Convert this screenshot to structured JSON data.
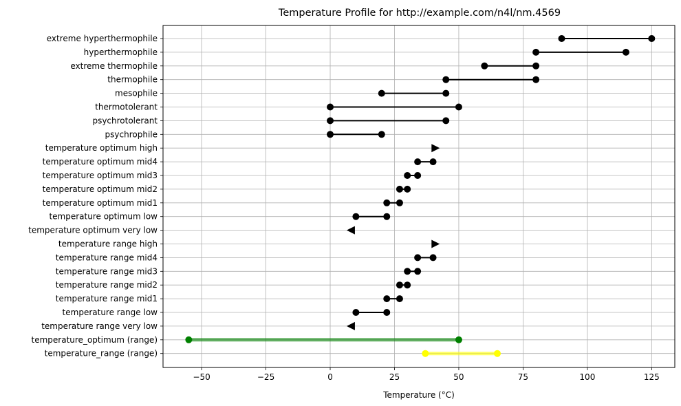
{
  "chart_data": {
    "type": "range",
    "title": "Temperature Profile for http://example.com/n4l/nm.4569",
    "xlabel": "Temperature (°C)",
    "ylabel": "",
    "xlim": [
      -65,
      134
    ],
    "xticks": [
      -50,
      -25,
      0,
      25,
      50,
      75,
      100,
      125
    ],
    "xtick_labels": [
      "−50",
      "−25",
      "0",
      "25",
      "50",
      "75",
      "100",
      "125"
    ],
    "grid": true,
    "rows": [
      {
        "label": "extreme hyperthermophile",
        "kind": "range",
        "start": 90,
        "end": 125,
        "color": "#000000"
      },
      {
        "label": "hyperthermophile",
        "kind": "range",
        "start": 80,
        "end": 115,
        "color": "#000000"
      },
      {
        "label": "extreme thermophile",
        "kind": "range",
        "start": 60,
        "end": 80,
        "color": "#000000"
      },
      {
        "label": "thermophile",
        "kind": "range",
        "start": 45,
        "end": 80,
        "color": "#000000"
      },
      {
        "label": "mesophile",
        "kind": "range",
        "start": 20,
        "end": 45,
        "color": "#000000"
      },
      {
        "label": "thermotolerant",
        "kind": "range",
        "start": 0,
        "end": 50,
        "color": "#000000"
      },
      {
        "label": "psychrotolerant",
        "kind": "range",
        "start": 0,
        "end": 45,
        "color": "#000000"
      },
      {
        "label": "psychrophile",
        "kind": "range",
        "start": 0,
        "end": 20,
        "color": "#000000"
      },
      {
        "label": "temperature optimum high",
        "kind": "right-arrow",
        "value": 41,
        "color": "#000000"
      },
      {
        "label": "temperature optimum mid4",
        "kind": "range",
        "start": 34,
        "end": 40,
        "color": "#000000"
      },
      {
        "label": "temperature optimum mid3",
        "kind": "range",
        "start": 30,
        "end": 34,
        "color": "#000000"
      },
      {
        "label": "temperature optimum mid2",
        "kind": "range",
        "start": 27,
        "end": 30,
        "color": "#000000"
      },
      {
        "label": "temperature optimum mid1",
        "kind": "range",
        "start": 22,
        "end": 27,
        "color": "#000000"
      },
      {
        "label": "temperature optimum low",
        "kind": "range",
        "start": 10,
        "end": 22,
        "color": "#000000"
      },
      {
        "label": "temperature optimum very low",
        "kind": "left-arrow",
        "value": 8,
        "color": "#000000"
      },
      {
        "label": "temperature range high",
        "kind": "right-arrow",
        "value": 41,
        "color": "#000000"
      },
      {
        "label": "temperature range mid4",
        "kind": "range",
        "start": 34,
        "end": 40,
        "color": "#000000"
      },
      {
        "label": "temperature range mid3",
        "kind": "range",
        "start": 30,
        "end": 34,
        "color": "#000000"
      },
      {
        "label": "temperature range mid2",
        "kind": "range",
        "start": 27,
        "end": 30,
        "color": "#000000"
      },
      {
        "label": "temperature range mid1",
        "kind": "range",
        "start": 22,
        "end": 27,
        "color": "#000000"
      },
      {
        "label": "temperature range low",
        "kind": "range",
        "start": 10,
        "end": 22,
        "color": "#000000"
      },
      {
        "label": "temperature range very low",
        "kind": "left-arrow",
        "value": 8,
        "color": "#000000"
      },
      {
        "label": "temperature_optimum (range)",
        "kind": "range",
        "start": -55,
        "end": 50,
        "color": "#008000",
        "highlight": true
      },
      {
        "label": "temperature_range (range)",
        "kind": "range",
        "start": 37,
        "end": 65,
        "color": "#ffff00",
        "highlight": true
      }
    ]
  }
}
